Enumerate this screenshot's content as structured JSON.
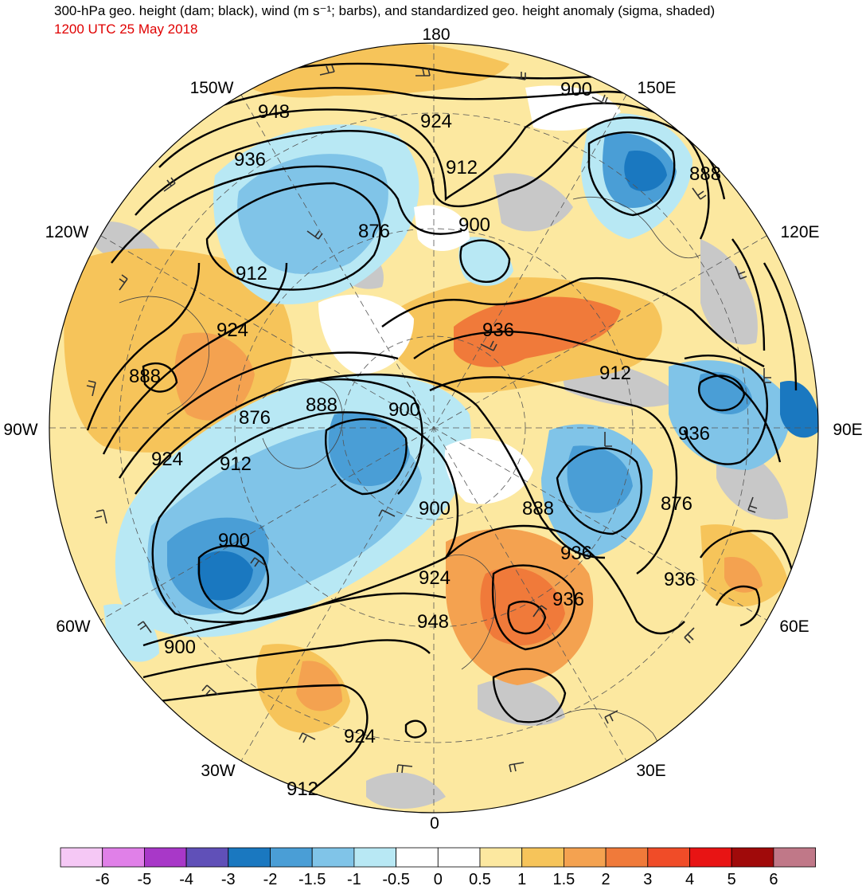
{
  "header": {
    "title": "300-hPa geo. height (dam; black), wind (m s⁻¹; barbs), and standardized geo. height anomaly (sigma, shaded)",
    "datetime": "1200 UTC 25 May 2018"
  },
  "map": {
    "projection": "north-polar-stereographic",
    "longitude_labels": [
      "180",
      "150E",
      "120E",
      "90E",
      "60E",
      "30E",
      "0",
      "30W",
      "60W",
      "90W",
      "120W",
      "150W"
    ],
    "height_contour_labels": [
      "948",
      "936",
      "924",
      "912",
      "900",
      "888",
      "876",
      "900",
      "912",
      "924",
      "936",
      "912",
      "888",
      "876",
      "888",
      "900",
      "936",
      "924",
      "912",
      "900",
      "888",
      "876",
      "900",
      "924",
      "936",
      "936",
      "948",
      "936",
      "924",
      "912",
      "900"
    ],
    "colors": {
      "contour": "#000000",
      "barb": "#333333",
      "land_gray": "#c8c8c8",
      "title_red": "#e00000"
    }
  },
  "colorbar": {
    "tick_labels": [
      "-6",
      "-5",
      "-4",
      "-3",
      "-2",
      "-1.5",
      "-1",
      "-0.5",
      "0",
      "0.5",
      "1",
      "1.5",
      "2",
      "3",
      "4",
      "5",
      "6"
    ],
    "colors": [
      "#f5c8f5",
      "#e080e8",
      "#a838c8",
      "#6050b8",
      "#1a78c0",
      "#4a9ed6",
      "#80c4e8",
      "#b8e8f4",
      "#ffffff",
      "#ffffff",
      "#fce8a0",
      "#f6c45a",
      "#f4a250",
      "#f07a3a",
      "#f04c28",
      "#e81414",
      "#a00a0a",
      "#c07888"
    ]
  }
}
